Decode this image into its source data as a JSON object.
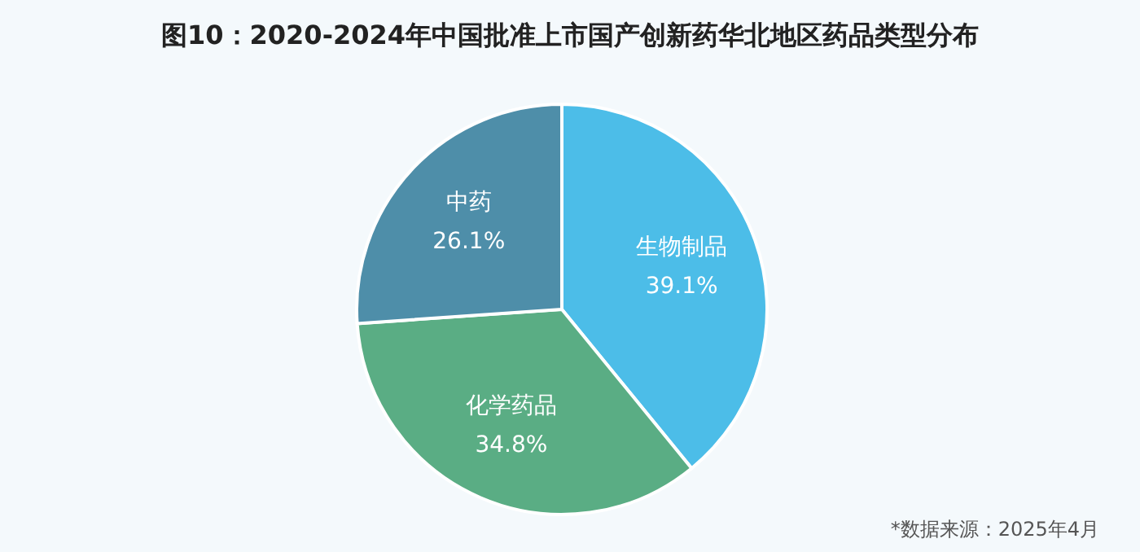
{
  "chart_data": {
    "type": "pie",
    "title": "图10：2020-2024年中国批准上市国产创新药华北地区药品类型分布",
    "categories": [
      "生物制品",
      "化学药品",
      "中药"
    ],
    "values": [
      39.1,
      34.8,
      26.1
    ],
    "colors": [
      "#4cbde8",
      "#5aad84",
      "#4e8ea9"
    ],
    "value_labels": [
      "39.1%",
      "34.8%",
      "26.1%"
    ],
    "annotations": [
      "*数据来源：2025年4月"
    ]
  }
}
